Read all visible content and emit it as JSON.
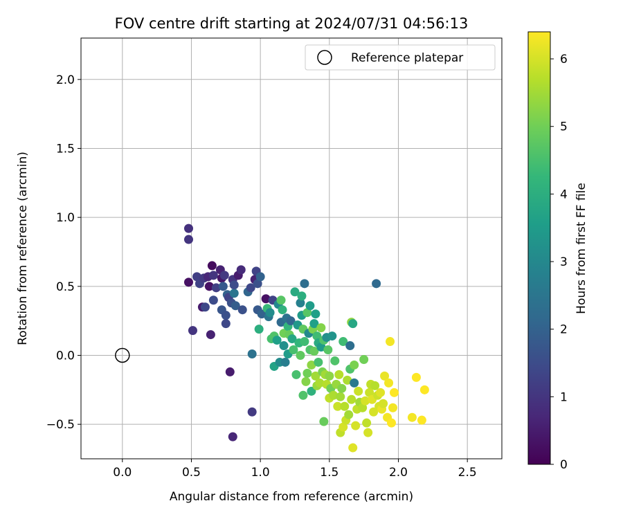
{
  "chart_data": {
    "type": "scatter",
    "title": "FOV centre drift starting at 2024/07/31 04:56:13",
    "xlabel": "Angular distance from reference (arcmin)",
    "ylabel": "Rotation from reference (arcmin)",
    "xlim": [
      -0.3,
      2.75
    ],
    "ylim": [
      -0.75,
      2.3
    ],
    "xticks": [
      0.0,
      0.5,
      1.0,
      1.5,
      2.0,
      2.5
    ],
    "xtick_labels": [
      "0.0",
      "0.5",
      "1.0",
      "1.5",
      "2.0",
      "2.5"
    ],
    "yticks": [
      -0.5,
      0.0,
      0.5,
      1.0,
      1.5,
      2.0
    ],
    "ytick_labels": [
      "−0.5",
      "0.0",
      "0.5",
      "1.0",
      "1.5",
      "2.0"
    ],
    "grid": true,
    "legend": {
      "position": "top-right",
      "entries": [
        {
          "label": "Reference platepar",
          "marker": "hollow-circle"
        }
      ]
    },
    "reference_point": {
      "x": 0.0,
      "y": 0.0,
      "label": "Reference platepar"
    },
    "colorbar": {
      "label": "Hours from first FF file",
      "colormap": "viridis",
      "range": [
        0,
        6.4
      ],
      "ticks": [
        0,
        1,
        2,
        3,
        4,
        5,
        6
      ],
      "tick_labels": [
        "0",
        "1",
        "2",
        "3",
        "4",
        "5",
        "6"
      ],
      "colors": [
        "#440154",
        "#482878",
        "#3e4989",
        "#31688e",
        "#26828e",
        "#1f9e89",
        "#35b779",
        "#6ece58",
        "#b5de2b",
        "#fde725"
      ]
    },
    "points": [
      [
        0.48,
        0.92,
        0.9
      ],
      [
        0.48,
        0.84,
        1.0
      ],
      [
        0.48,
        0.53,
        0.3
      ],
      [
        0.51,
        0.18,
        1.0
      ],
      [
        0.54,
        0.57,
        1.2
      ],
      [
        0.56,
        0.52,
        1.3
      ],
      [
        0.58,
        0.35,
        0.5
      ],
      [
        0.59,
        0.56,
        1.1
      ],
      [
        0.6,
        0.35,
        1.4
      ],
      [
        0.62,
        0.57,
        0.7
      ],
      [
        0.63,
        0.5,
        0.3
      ],
      [
        0.64,
        0.15,
        0.6
      ],
      [
        0.65,
        0.65,
        0.2
      ],
      [
        0.66,
        0.58,
        1.0
      ],
      [
        0.66,
        0.4,
        1.5
      ],
      [
        0.68,
        0.49,
        1.2
      ],
      [
        0.71,
        0.62,
        0.6
      ],
      [
        0.72,
        0.56,
        0.4
      ],
      [
        0.72,
        0.33,
        1.7
      ],
      [
        0.73,
        0.5,
        1.8
      ],
      [
        0.74,
        0.58,
        1.1
      ],
      [
        0.75,
        0.29,
        1.6
      ],
      [
        0.75,
        0.23,
        1.4
      ],
      [
        0.76,
        0.44,
        2.0
      ],
      [
        0.77,
        0.42,
        1.3
      ],
      [
        0.78,
        -0.12,
        0.5
      ],
      [
        0.79,
        0.38,
        1.6
      ],
      [
        0.8,
        0.55,
        1.0
      ],
      [
        0.8,
        -0.59,
        0.7
      ],
      [
        0.81,
        0.45,
        2.5
      ],
      [
        0.81,
        0.51,
        1.5
      ],
      [
        0.82,
        0.36,
        1.9
      ],
      [
        0.84,
        0.58,
        0.5
      ],
      [
        0.86,
        0.62,
        0.8
      ],
      [
        0.87,
        0.33,
        1.6
      ],
      [
        0.91,
        0.46,
        2.1
      ],
      [
        0.93,
        0.49,
        1.4
      ],
      [
        0.94,
        0.01,
        2.4
      ],
      [
        0.94,
        -0.41,
        1.1
      ],
      [
        0.96,
        0.55,
        0.6
      ],
      [
        0.97,
        0.61,
        1.3
      ],
      [
        0.98,
        0.33,
        1.8
      ],
      [
        0.98,
        0.52,
        1.6
      ],
      [
        0.99,
        0.19,
        4.0
      ],
      [
        1.0,
        0.57,
        2.0
      ],
      [
        1.01,
        0.3,
        2.0
      ],
      [
        1.04,
        0.41,
        0.3
      ],
      [
        1.05,
        0.34,
        4.3
      ],
      [
        1.06,
        0.28,
        2.5
      ],
      [
        1.07,
        0.31,
        3.1
      ],
      [
        1.08,
        0.12,
        4.5
      ],
      [
        1.09,
        0.4,
        1.3
      ],
      [
        1.1,
        -0.08,
        3.7
      ],
      [
        1.1,
        0.14,
        4.6
      ],
      [
        1.12,
        0.11,
        3.6
      ],
      [
        1.13,
        0.37,
        3.0
      ],
      [
        1.14,
        -0.05,
        3.1
      ],
      [
        1.15,
        0.24,
        2.2
      ],
      [
        1.15,
        0.4,
        4.7
      ],
      [
        1.16,
        0.33,
        4.1
      ],
      [
        1.17,
        0.16,
        5.0
      ],
      [
        1.17,
        0.07,
        3.2
      ],
      [
        1.18,
        -0.05,
        2.7
      ],
      [
        1.19,
        0.27,
        2.4
      ],
      [
        1.2,
        0.21,
        4.2
      ],
      [
        1.2,
        0.01,
        3.5
      ],
      [
        1.21,
        0.15,
        4.9
      ],
      [
        1.22,
        0.25,
        2.1
      ],
      [
        1.23,
        0.12,
        3.8
      ],
      [
        1.24,
        0.04,
        4.5
      ],
      [
        1.25,
        0.46,
        3.9
      ],
      [
        1.26,
        -0.14,
        4.5
      ],
      [
        1.27,
        0.22,
        3.4
      ],
      [
        1.28,
        0.09,
        4.2
      ],
      [
        1.29,
        0.0,
        4.8
      ],
      [
        1.29,
        0.38,
        2.8
      ],
      [
        1.3,
        0.43,
        4.0
      ],
      [
        1.3,
        0.29,
        3.5
      ],
      [
        1.31,
        -0.29,
        4.6
      ],
      [
        1.31,
        0.19,
        4.8
      ],
      [
        1.32,
        0.52,
        2.3
      ],
      [
        1.32,
        0.1,
        4.4
      ],
      [
        1.33,
        -0.19,
        5.2
      ],
      [
        1.34,
        0.31,
        4.7
      ],
      [
        1.34,
        -0.13,
        5.0
      ],
      [
        1.35,
        0.16,
        3.0
      ],
      [
        1.36,
        0.36,
        3.5
      ],
      [
        1.36,
        0.04,
        4.6
      ],
      [
        1.37,
        -0.26,
        4.1
      ],
      [
        1.37,
        -0.07,
        5.3
      ],
      [
        1.38,
        0.19,
        5.1
      ],
      [
        1.39,
        0.23,
        3.6
      ],
      [
        1.39,
        0.03,
        4.9
      ],
      [
        1.4,
        0.3,
        3.6
      ],
      [
        1.4,
        -0.15,
        5.5
      ],
      [
        1.41,
        0.14,
        4.4
      ],
      [
        1.41,
        -0.22,
        5.4
      ],
      [
        1.42,
        0.09,
        3.9
      ],
      [
        1.42,
        -0.05,
        4.5
      ],
      [
        1.43,
        -0.2,
        5.6
      ],
      [
        1.44,
        0.2,
        5.2
      ],
      [
        1.44,
        0.06,
        3.5
      ],
      [
        1.45,
        -0.12,
        5.1
      ],
      [
        1.46,
        0.11,
        4.6
      ],
      [
        1.46,
        -0.48,
        4.9
      ],
      [
        1.47,
        -0.14,
        5.5
      ],
      [
        1.48,
        0.13,
        3.2
      ],
      [
        1.48,
        -0.21,
        5.7
      ],
      [
        1.49,
        0.04,
        4.7
      ],
      [
        1.5,
        -0.31,
        5.8
      ],
      [
        1.5,
        -0.15,
        5.3
      ],
      [
        1.51,
        -0.24,
        5.0
      ],
      [
        1.52,
        0.14,
        3.3
      ],
      [
        1.53,
        -0.29,
        5.6
      ],
      [
        1.54,
        -0.04,
        4.6
      ],
      [
        1.55,
        -0.21,
        5.4
      ],
      [
        1.56,
        -0.37,
        5.9
      ],
      [
        1.57,
        -0.14,
        5.7
      ],
      [
        1.58,
        -0.3,
        5.5
      ],
      [
        1.58,
        -0.56,
        5.8
      ],
      [
        1.59,
        -0.24,
        5.2
      ],
      [
        1.6,
        -0.52,
        6.0
      ],
      [
        1.6,
        0.1,
        4.4
      ],
      [
        1.61,
        -0.37,
        5.7
      ],
      [
        1.62,
        -0.47,
        5.9
      ],
      [
        1.63,
        -0.18,
        5.6
      ],
      [
        1.64,
        -0.43,
        5.5
      ],
      [
        1.65,
        0.07,
        2.3
      ],
      [
        1.65,
        -0.1,
        4.6
      ],
      [
        1.66,
        -0.32,
        5.7
      ],
      [
        1.66,
        0.24,
        5.3
      ],
      [
        1.67,
        0.23,
        3.8
      ],
      [
        1.67,
        -0.67,
        6.1
      ],
      [
        1.68,
        -0.2,
        2.6
      ],
      [
        1.68,
        -0.07,
        5.1
      ],
      [
        1.69,
        -0.51,
        6.0
      ],
      [
        1.7,
        -0.39,
        5.8
      ],
      [
        1.71,
        -0.26,
        5.9
      ],
      [
        1.72,
        -0.34,
        5.5
      ],
      [
        1.74,
        -0.38,
        5.7
      ],
      [
        1.75,
        -0.03,
        5.0
      ],
      [
        1.76,
        -0.33,
        6.0
      ],
      [
        1.77,
        -0.49,
        5.8
      ],
      [
        1.78,
        -0.56,
        6.0
      ],
      [
        1.79,
        -0.27,
        5.9
      ],
      [
        1.8,
        -0.21,
        5.8
      ],
      [
        1.81,
        -0.32,
        6.1
      ],
      [
        1.82,
        -0.41,
        6.0
      ],
      [
        1.83,
        -0.22,
        5.7
      ],
      [
        1.84,
        0.52,
        2.2
      ],
      [
        1.85,
        -0.29,
        5.9
      ],
      [
        1.86,
        -0.37,
        6.0
      ],
      [
        1.87,
        -0.27,
        6.1
      ],
      [
        1.88,
        -0.39,
        6.2
      ],
      [
        1.89,
        -0.35,
        6.0
      ],
      [
        1.9,
        -0.15,
        6.2
      ],
      [
        1.92,
        -0.45,
        6.3
      ],
      [
        1.93,
        -0.2,
        6.3
      ],
      [
        1.94,
        0.1,
        6.3
      ],
      [
        1.95,
        -0.49,
        6.4
      ],
      [
        1.96,
        -0.38,
        6.3
      ],
      [
        1.97,
        -0.27,
        6.4
      ],
      [
        2.1,
        -0.45,
        6.3
      ],
      [
        2.13,
        -0.16,
        6.4
      ],
      [
        2.17,
        -0.47,
        6.4
      ],
      [
        2.19,
        -0.25,
        6.4
      ]
    ]
  }
}
